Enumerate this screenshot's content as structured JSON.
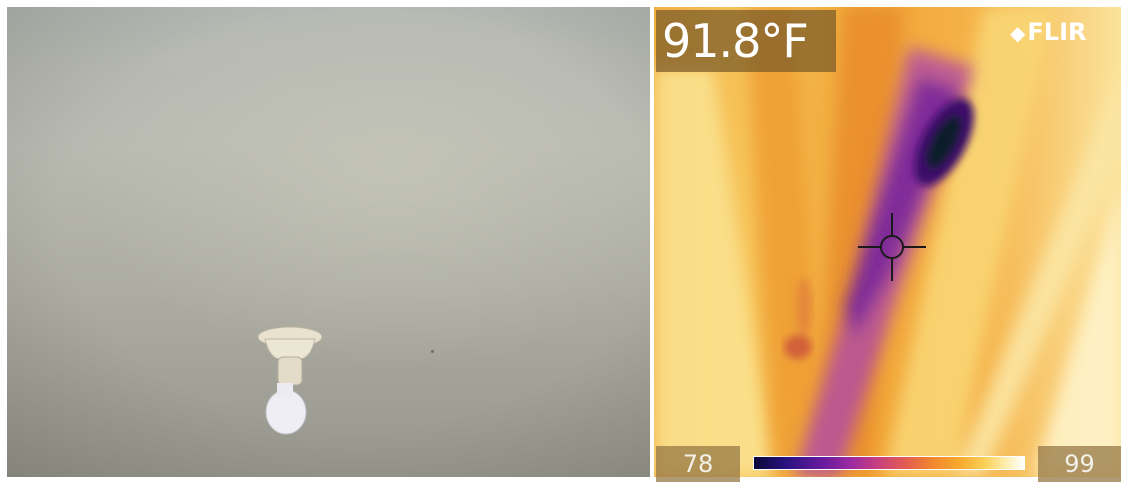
{
  "visible_image": {
    "description_icon": "ceiling-light-fixture-icon"
  },
  "thermal_image": {
    "spot_temperature": "91.8°F",
    "brand_logo": "FLIR",
    "brand_icon": "flir-diamond-icon",
    "crosshair_icon": "crosshair-icon",
    "scale": {
      "min": "78",
      "max": "99",
      "palette": "iron"
    }
  },
  "colors": {
    "wall": "#b2b4ad",
    "thermal_warm": "#f6c45a",
    "thermal_cold": "#3a0a5c"
  }
}
